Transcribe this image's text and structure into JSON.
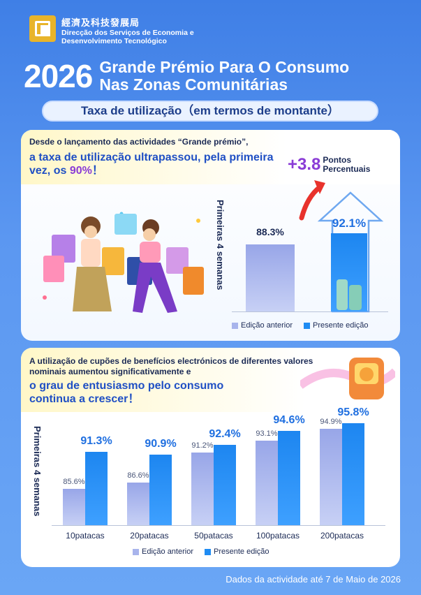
{
  "header": {
    "org_zh": "經濟及科技發展局",
    "org_pt_line1": "Direcção dos Serviços de Economia e",
    "org_pt_line2": "Desenvolvimento Tecnológico"
  },
  "title": {
    "year": "2026",
    "line1": "Grande Prémio Para O Consumo",
    "line2": "Nas Zonas Comunitárias"
  },
  "subtitle": "Taxa de utilização（em termos de montante）",
  "section1": {
    "lead": "Desde o lançamento das actividades “Grande prémio”,",
    "headline_a": "a taxa de utilização ultrapassou, pela primeira vez, os ",
    "headline_pct": "90%",
    "headline_end": "！",
    "increase_value": "+3.8",
    "increase_label_1": "Pontos",
    "increase_label_2": "Percentuais",
    "y_axis_label": "Primeiras 4 semanas",
    "legend_prev": "Edição anterior",
    "legend_cur": "Presente edição"
  },
  "section2": {
    "lead": "A utilização de cupões de benefícios electrónicos de diferentes valores nominais aumentou significativamente e",
    "headline": "o grau de entusiasmo pelo consumo continua a crescer！",
    "y_axis_label": "Primeiras 4 semanas",
    "legend_prev": "Edição anterior",
    "legend_cur": "Presente edição"
  },
  "footer": "Dados da actividade até 7 de Maio de 2026",
  "colors": {
    "previous": "#a8b4ec",
    "current": "#1f8cf3",
    "highlight": "#8a3cd6",
    "headline": "#1f4fc4"
  },
  "chart_data": [
    {
      "type": "bar",
      "categories": [
        ""
      ],
      "ylabel": "Primeiras 4 semanas",
      "series": [
        {
          "name": "Edição anterior",
          "values": [
            88.3
          ],
          "labels": [
            "88.3%"
          ]
        },
        {
          "name": "Presente edição",
          "values": [
            92.1
          ],
          "labels": [
            "92.1%"
          ]
        }
      ]
    },
    {
      "type": "bar",
      "categories": [
        "10patacas",
        "20patacas",
        "50patacas",
        "100patacas",
        "200patacas"
      ],
      "ylabel": "Primeiras 4 semanas",
      "series": [
        {
          "name": "Edição anterior",
          "values": [
            85.6,
            86.6,
            91.2,
            93.1,
            94.9
          ],
          "labels": [
            "85.6%",
            "86.6%",
            "91.2%",
            "93.1%",
            "94.9%"
          ]
        },
        {
          "name": "Presente edição",
          "values": [
            91.3,
            90.9,
            92.4,
            94.6,
            95.8
          ],
          "labels": [
            "91.3%",
            "90.9%",
            "92.4%",
            "94.6%",
            "95.8%"
          ]
        }
      ]
    }
  ]
}
